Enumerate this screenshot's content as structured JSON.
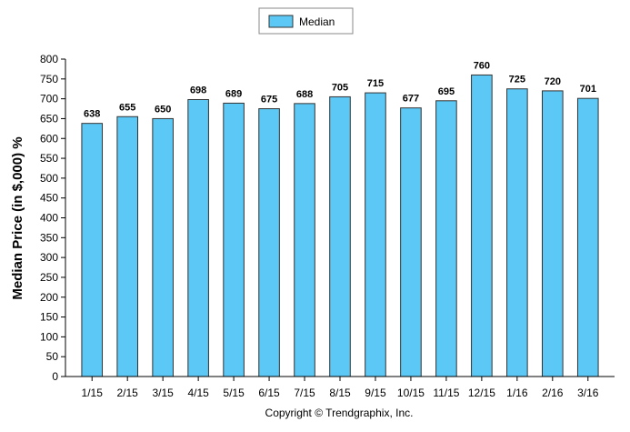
{
  "chart_data": {
    "type": "bar",
    "categories": [
      "1/15",
      "2/15",
      "3/15",
      "4/15",
      "5/15",
      "6/15",
      "7/15",
      "8/15",
      "9/15",
      "10/15",
      "11/15",
      "12/15",
      "1/16",
      "2/16",
      "3/16"
    ],
    "series": [
      {
        "name": "Median",
        "values": [
          638,
          655,
          650,
          698,
          689,
          675,
          688,
          705,
          715,
          677,
          695,
          760,
          725,
          720,
          701
        ]
      }
    ],
    "title": "",
    "xlabel": "",
    "ylabel": "Median Price (in $,000) %",
    "ylim": [
      0,
      800
    ],
    "yticks": [
      0,
      50,
      100,
      150,
      200,
      250,
      300,
      350,
      400,
      450,
      500,
      550,
      600,
      650,
      700,
      750,
      800
    ],
    "legend": "top-center",
    "grid": false,
    "colors": {
      "bar_fill": "#5bc8f5",
      "bar_stroke": "#333333"
    },
    "footer": "Copyright © Trendgraphix, Inc."
  }
}
